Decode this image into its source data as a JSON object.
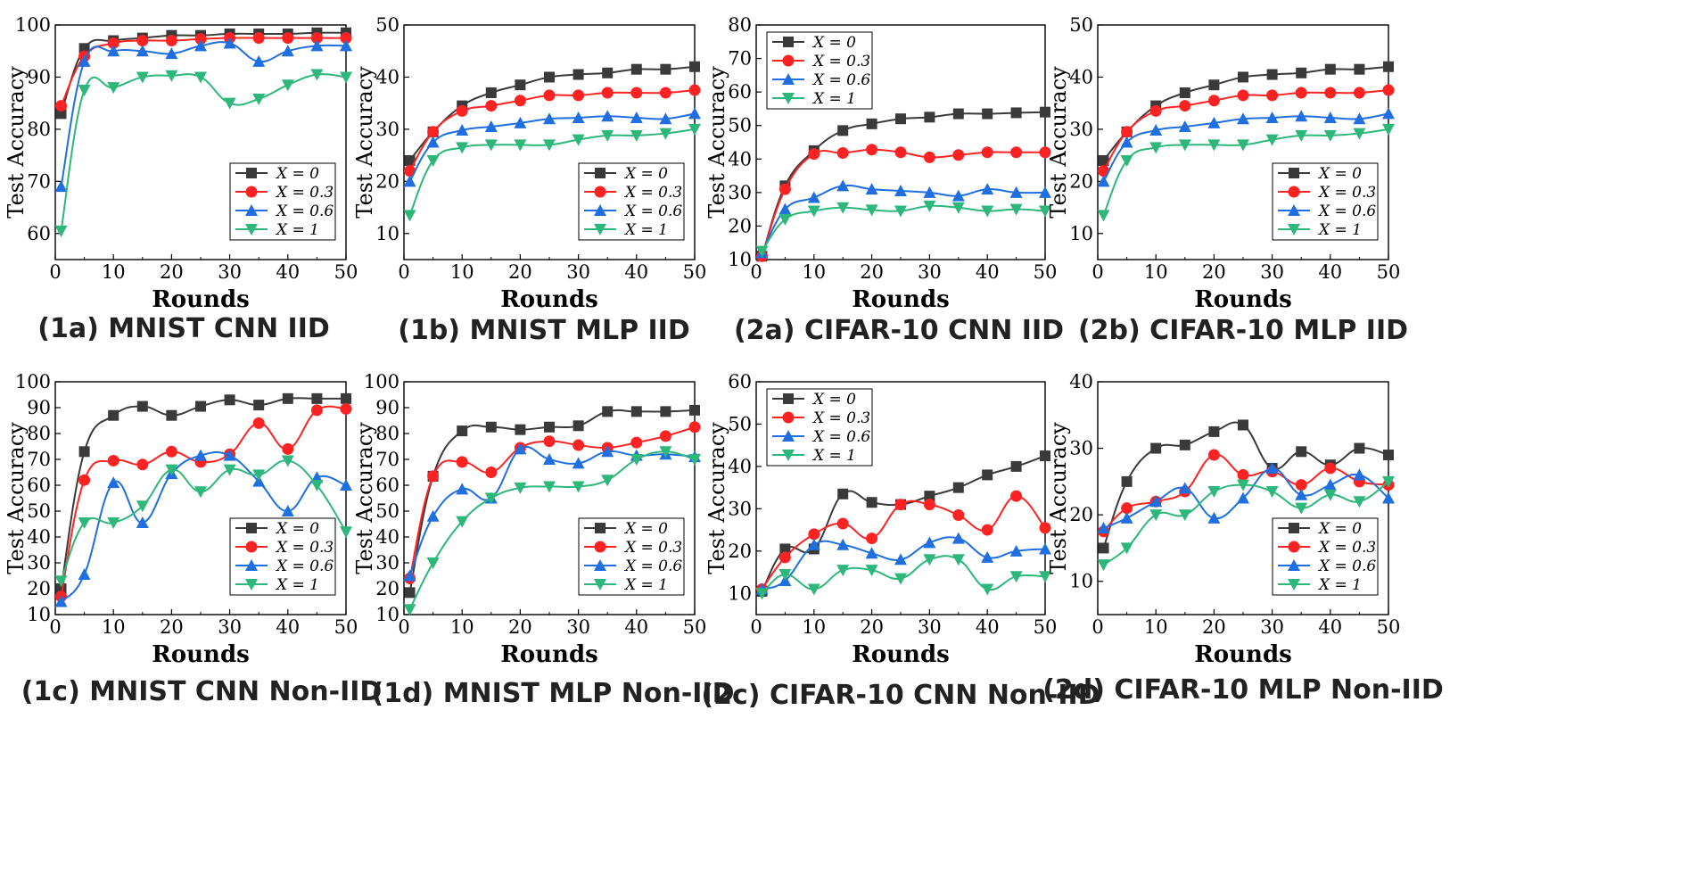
{
  "colors": {
    "X = 0": "#3a3a3a",
    "X = 0.3": "#ff2222",
    "X = 0.6": "#1f6fe0",
    "X = 1": "#2db77a"
  },
  "markers": {
    "X = 0": "square",
    "X = 0.3": "circle",
    "X = 0.6": "triangle-up",
    "X = 1": "triangle-down"
  },
  "chart_data": [
    {
      "type": "line",
      "caption": "(1a) MNIST CNN IID",
      "xlabel": "Rounds",
      "ylabel": "Test Accuracy",
      "xlim": [
        0,
        50
      ],
      "ylim": [
        55,
        100
      ],
      "xticks": [
        0,
        10,
        20,
        30,
        40,
        50
      ],
      "yticks": [
        60,
        70,
        80,
        90,
        100
      ],
      "x": [
        1,
        5,
        10,
        15,
        20,
        25,
        30,
        35,
        40,
        45,
        50
      ],
      "legend": "lower-right",
      "series": [
        {
          "name": "X = 0",
          "values": [
            83,
            95.5,
            97,
            97.5,
            98,
            98,
            98.3,
            98.3,
            98.3,
            98.5,
            98.5
          ]
        },
        {
          "name": "X = 0.3",
          "values": [
            84.5,
            94,
            96.5,
            97,
            97,
            97.3,
            97.5,
            97.5,
            97.5,
            97.5,
            97.5
          ]
        },
        {
          "name": "X = 0.6",
          "values": [
            69,
            93,
            95,
            95,
            94.5,
            96,
            96.5,
            93,
            95,
            96,
            96
          ]
        },
        {
          "name": "X = 1",
          "values": [
            60.5,
            87.5,
            88,
            90,
            90.3,
            90,
            85,
            85.8,
            88.5,
            90.5,
            90
          ]
        }
      ]
    },
    {
      "type": "line",
      "caption": "(1b) MNIST MLP IID",
      "xlabel": "Rounds",
      "ylabel": "Test Accuracy",
      "xlim": [
        0,
        50
      ],
      "ylim": [
        5,
        50
      ],
      "xticks": [
        0,
        10,
        20,
        30,
        40,
        50
      ],
      "yticks": [
        10,
        20,
        30,
        40,
        50
      ],
      "x": [
        1,
        5,
        10,
        15,
        20,
        25,
        30,
        35,
        40,
        45,
        50
      ],
      "legend": "lower-right",
      "series": [
        {
          "name": "X = 0",
          "values": [
            24,
            29.5,
            34.5,
            37,
            38.5,
            40,
            40.5,
            40.8,
            41.5,
            41.5,
            42
          ]
        },
        {
          "name": "X = 0.3",
          "values": [
            22,
            29.5,
            33.5,
            34.5,
            35.5,
            36.5,
            36.5,
            37,
            37,
            37,
            37.5
          ]
        },
        {
          "name": "X = 0.6",
          "values": [
            20,
            27.5,
            29.8,
            30.5,
            31.2,
            32,
            32.2,
            32.5,
            32.2,
            32,
            33
          ]
        },
        {
          "name": "X = 1",
          "values": [
            13.5,
            24,
            26.5,
            27,
            27,
            27,
            28,
            28.8,
            28.8,
            29.2,
            30
          ]
        }
      ]
    },
    {
      "type": "line",
      "caption": "(2a) CIFAR-10 CNN IID",
      "xlabel": "Rounds",
      "ylabel": "Test Accuracy",
      "xlim": [
        0,
        50
      ],
      "ylim": [
        10,
        80
      ],
      "xticks": [
        0,
        10,
        20,
        30,
        40,
        50
      ],
      "yticks": [
        10,
        20,
        30,
        40,
        50,
        60,
        70,
        80
      ],
      "x": [
        1,
        5,
        10,
        15,
        20,
        25,
        30,
        35,
        40,
        45,
        50
      ],
      "legend": "top-left",
      "series": [
        {
          "name": "X = 0",
          "values": [
            11,
            32,
            42.5,
            48.5,
            50.5,
            52,
            52.5,
            53.5,
            53.5,
            53.8,
            54
          ]
        },
        {
          "name": "X = 0.3",
          "values": [
            11,
            31,
            41.5,
            41.8,
            42.8,
            42,
            40.5,
            41.2,
            42,
            42,
            42
          ]
        },
        {
          "name": "X = 0.6",
          "values": [
            12,
            25,
            28.5,
            32,
            31,
            30.5,
            30,
            29,
            31,
            30,
            30
          ]
        },
        {
          "name": "X = 1",
          "values": [
            12.5,
            22,
            24.5,
            25.5,
            24.8,
            24.5,
            26,
            25.5,
            24.5,
            25,
            24.5
          ]
        }
      ]
    },
    {
      "type": "line",
      "caption": "(2b) CIFAR-10 MLP IID",
      "xlabel": "Rounds",
      "ylabel": "Test Accuracy",
      "xlim": [
        0,
        50
      ],
      "ylim": [
        5,
        50
      ],
      "xticks": [
        0,
        10,
        20,
        30,
        40,
        50
      ],
      "yticks": [
        10,
        20,
        30,
        40,
        50
      ],
      "x": [
        1,
        5,
        10,
        15,
        20,
        25,
        30,
        35,
        40,
        45,
        50
      ],
      "legend": "lower-right",
      "series": [
        {
          "name": "X = 0",
          "values": [
            24,
            29.5,
            34.5,
            37,
            38.5,
            40,
            40.5,
            40.8,
            41.5,
            41.5,
            42
          ]
        },
        {
          "name": "X = 0.3",
          "values": [
            22,
            29.5,
            33.5,
            34.5,
            35.5,
            36.5,
            36.5,
            37,
            37,
            37,
            37.5
          ]
        },
        {
          "name": "X = 0.6",
          "values": [
            20,
            27.5,
            29.8,
            30.5,
            31.2,
            32,
            32.2,
            32.5,
            32.2,
            32,
            33
          ]
        },
        {
          "name": "X = 1",
          "values": [
            13.5,
            24,
            26.5,
            27,
            27,
            27,
            28,
            28.8,
            28.8,
            29.2,
            30
          ]
        }
      ]
    },
    {
      "type": "line",
      "caption": "(1c) MNIST CNN Non-IID",
      "xlabel": "Rounds",
      "ylabel": "Test Accuracy",
      "xlim": [
        0,
        50
      ],
      "ylim": [
        10,
        100
      ],
      "xticks": [
        0,
        10,
        20,
        30,
        40,
        50
      ],
      "yticks": [
        10,
        20,
        30,
        40,
        50,
        60,
        70,
        80,
        90,
        100
      ],
      "x": [
        1,
        5,
        10,
        15,
        20,
        25,
        30,
        35,
        40,
        45,
        50
      ],
      "legend": "lower-right",
      "series": [
        {
          "name": "X = 0",
          "values": [
            20,
            73,
            87,
            90.5,
            87,
            90.5,
            93,
            91,
            93.5,
            93.5,
            93.5
          ]
        },
        {
          "name": "X = 0.3",
          "values": [
            17,
            62,
            69.5,
            68,
            73,
            69,
            72,
            84,
            74,
            89,
            89.5
          ]
        },
        {
          "name": "X = 0.6",
          "values": [
            15,
            25.5,
            61,
            45.5,
            64.5,
            71.5,
            71.5,
            61.5,
            50,
            63,
            60
          ]
        },
        {
          "name": "X = 1",
          "values": [
            23,
            45.5,
            45.5,
            52,
            66,
            57.5,
            66,
            64,
            69.5,
            60,
            42
          ]
        }
      ]
    },
    {
      "type": "line",
      "caption": "(1d) MNIST MLP Non-IID",
      "xlabel": "Rounds",
      "ylabel": "Test Accuracy",
      "xlim": [
        0,
        50
      ],
      "ylim": [
        10,
        100
      ],
      "xticks": [
        0,
        10,
        20,
        30,
        40,
        50
      ],
      "yticks": [
        10,
        20,
        30,
        40,
        50,
        60,
        70,
        80,
        90,
        100
      ],
      "x": [
        1,
        5,
        10,
        15,
        20,
        25,
        30,
        35,
        40,
        45,
        50
      ],
      "legend": "lower-right",
      "series": [
        {
          "name": "X = 0",
          "values": [
            18.5,
            63.5,
            81,
            82.5,
            81.5,
            82.5,
            83,
            88.5,
            88.5,
            88.5,
            89
          ]
        },
        {
          "name": "X = 0.3",
          "values": [
            24,
            63.5,
            69,
            65,
            74.5,
            77,
            75.5,
            74.5,
            76.5,
            79,
            82.5
          ]
        },
        {
          "name": "X = 0.6",
          "values": [
            25,
            48,
            58.5,
            55,
            74,
            70,
            68.5,
            73,
            71.5,
            72,
            71
          ]
        },
        {
          "name": "X = 1",
          "values": [
            12,
            30,
            46,
            55,
            59,
            59.5,
            59.5,
            62,
            70,
            73,
            70
          ]
        }
      ]
    },
    {
      "type": "line",
      "caption": "(2c) CIFAR-10 CNN Non-IID",
      "xlabel": "Rounds",
      "ylabel": "Test Accuracy",
      "xlim": [
        0,
        50
      ],
      "ylim": [
        5,
        60
      ],
      "xticks": [
        0,
        10,
        20,
        30,
        40,
        50
      ],
      "yticks": [
        10,
        20,
        30,
        40,
        50,
        60
      ],
      "x": [
        1,
        5,
        10,
        15,
        20,
        25,
        30,
        35,
        40,
        45,
        50
      ],
      "legend": "top-left",
      "series": [
        {
          "name": "X = 0",
          "values": [
            10.5,
            20.5,
            20.5,
            33.5,
            31.5,
            31,
            33,
            35,
            38,
            40,
            42.5
          ]
        },
        {
          "name": "X = 0.3",
          "values": [
            11,
            18.5,
            24,
            26.5,
            23,
            31,
            31,
            28.5,
            25,
            33,
            25.5
          ]
        },
        {
          "name": "X = 0.6",
          "values": [
            11,
            13,
            21.5,
            21.5,
            19.5,
            18,
            22,
            23,
            18.5,
            20,
            20.5
          ]
        },
        {
          "name": "X = 1",
          "values": [
            10,
            14.5,
            11,
            15.5,
            15.5,
            13.5,
            18,
            18,
            11,
            14,
            14
          ]
        }
      ]
    },
    {
      "type": "line",
      "caption": "(2d) CIFAR-10 MLP Non-IID",
      "xlabel": "Rounds",
      "ylabel": "Test Accuracy",
      "xlim": [
        0,
        50
      ],
      "ylim": [
        5,
        40
      ],
      "xticks": [
        0,
        10,
        20,
        30,
        40,
        50
      ],
      "yticks": [
        10,
        20,
        30,
        40
      ],
      "x": [
        1,
        5,
        10,
        15,
        20,
        25,
        30,
        35,
        40,
        45,
        50
      ],
      "legend": "lower-right",
      "series": [
        {
          "name": "X = 0",
          "values": [
            15,
            25,
            30,
            30.5,
            32.5,
            33.5,
            27,
            29.5,
            27.5,
            30,
            29
          ]
        },
        {
          "name": "X = 0.3",
          "values": [
            17.5,
            21,
            22,
            23.5,
            29,
            26,
            26.5,
            24.5,
            27,
            25,
            24.5
          ]
        },
        {
          "name": "X = 0.6",
          "values": [
            18,
            19.5,
            22,
            24,
            19.5,
            22.5,
            27,
            23,
            24.5,
            26,
            22.5
          ]
        },
        {
          "name": "X = 1",
          "values": [
            12.5,
            15,
            20,
            20,
            23.5,
            24.5,
            23.5,
            21,
            23,
            22,
            25
          ]
        }
      ]
    }
  ]
}
